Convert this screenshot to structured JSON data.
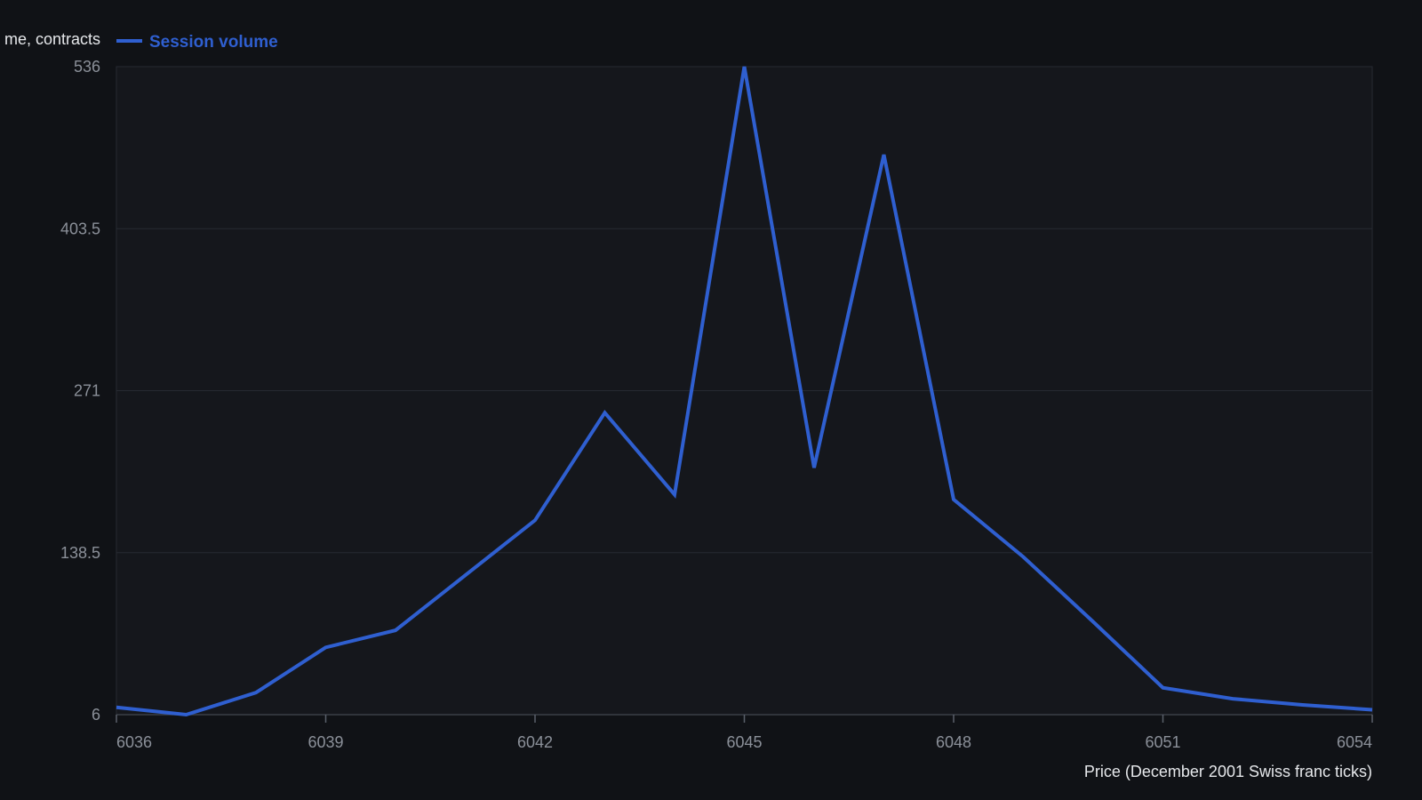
{
  "chart_data": {
    "type": "line",
    "title": "",
    "xlabel": "Price (December 2001 Swiss franc ticks)",
    "ylabel": "me, contracts",
    "x": [
      6036,
      6037,
      6038,
      6039,
      6040,
      6041,
      6042,
      6043,
      6044,
      6045,
      6046,
      6047,
      6048,
      6049,
      6050,
      6051,
      6052,
      6053,
      6054
    ],
    "series": [
      {
        "name": "Session volume",
        "color": "#2f5fd0",
        "values": [
          12,
          6,
          24,
          61,
          75,
          120,
          165,
          253,
          186,
          536,
          208,
          464,
          182,
          135,
          82,
          28,
          19,
          14,
          10
        ]
      }
    ],
    "xlim": [
      6036,
      6054
    ],
    "ylim": [
      6,
      536
    ],
    "x_ticks": [
      "6036",
      "6039",
      "6042",
      "6045",
      "6048",
      "6051",
      "6054"
    ],
    "y_ticks": [
      "6",
      "138.5",
      "271",
      "403.5",
      "536"
    ],
    "grid": true,
    "legend_position": "top-left"
  }
}
